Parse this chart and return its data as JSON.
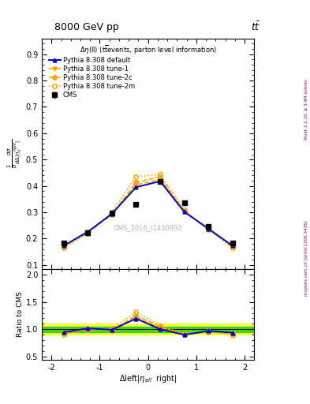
{
  "title": "8000 GeV pp",
  "top_right_label": "tt",
  "annotation": "Δη(ll) (t̅̅events, parton level information)",
  "watermark": "CMS_2016_I1430892",
  "right_label_top": "Rivet 3.1.10, ≥ 3.4M events",
  "right_label_bot": "mcplots.cern.ch [arXiv:1306.3436]",
  "xlabel": "Δleft|η_{ell}  right|",
  "ylabel_main": "$\\frac{1}{\\sigma}\\frac{d\\sigma}{d\\Delta|\\eta_{ll}^{right}|}$",
  "ylabel_ratio": "Ratio to CMS",
  "xlim": [
    -2.2,
    2.2
  ],
  "ylim_main": [
    0.085,
    0.96
  ],
  "ylim_ratio": [
    0.45,
    2.1
  ],
  "yticks_main": [
    0.1,
    0.2,
    0.3,
    0.4,
    0.5,
    0.6,
    0.7,
    0.8,
    0.9
  ],
  "yticks_ratio": [
    0.5,
    1.0,
    1.5,
    2.0
  ],
  "xticks": [
    -2,
    -1,
    0,
    1,
    2
  ],
  "cms_x": [
    -1.75,
    -1.25,
    -0.75,
    -0.25,
    0.25,
    0.75,
    1.25,
    1.75
  ],
  "cms_y": [
    0.183,
    0.222,
    0.296,
    0.33,
    0.416,
    0.335,
    0.245,
    0.184
  ],
  "cms_yerr": [
    0.005,
    0.005,
    0.006,
    0.007,
    0.008,
    0.007,
    0.006,
    0.005
  ],
  "pythia_default_x": [
    -1.75,
    -1.25,
    -0.75,
    -0.25,
    0.25,
    0.75,
    1.25,
    1.75
  ],
  "pythia_default_y": [
    0.173,
    0.226,
    0.294,
    0.395,
    0.418,
    0.302,
    0.238,
    0.173
  ],
  "pythia_tune1_x": [
    -1.75,
    -1.25,
    -0.75,
    -0.25,
    0.25,
    0.75,
    1.25,
    1.75
  ],
  "pythia_tune1_y": [
    0.172,
    0.224,
    0.293,
    0.403,
    0.425,
    0.303,
    0.237,
    0.172
  ],
  "pythia_tune2c_x": [
    -1.75,
    -1.25,
    -0.75,
    -0.25,
    0.25,
    0.75,
    1.25,
    1.75
  ],
  "pythia_tune2c_y": [
    0.17,
    0.222,
    0.291,
    0.413,
    0.435,
    0.303,
    0.236,
    0.17
  ],
  "pythia_tune2m_x": [
    -1.75,
    -1.25,
    -0.75,
    -0.25,
    0.25,
    0.75,
    1.25,
    1.75
  ],
  "pythia_tune2m_y": [
    0.165,
    0.22,
    0.3,
    0.435,
    0.445,
    0.31,
    0.233,
    0.165
  ],
  "color_default": "#0000cc",
  "color_tune1": "#ffa500",
  "color_tune2c": "#ffa500",
  "color_tune2m": "#ffa500",
  "color_cms": "#000000",
  "color_green_band": "#00cc00",
  "color_yellow_band": "#ffff00",
  "ratio_default": [
    0.945,
    1.018,
    0.993,
    1.197,
    1.005,
    0.901,
    0.971,
    0.94
  ],
  "ratio_tune1": [
    0.939,
    1.009,
    0.99,
    1.221,
    1.021,
    0.904,
    0.967,
    0.935
  ],
  "ratio_tune2c": [
    0.929,
    1.0,
    0.983,
    1.252,
    1.046,
    0.904,
    0.963,
    0.924
  ],
  "ratio_tune2m": [
    0.902,
    0.991,
    1.014,
    1.318,
    1.069,
    0.925,
    0.951,
    0.897
  ]
}
